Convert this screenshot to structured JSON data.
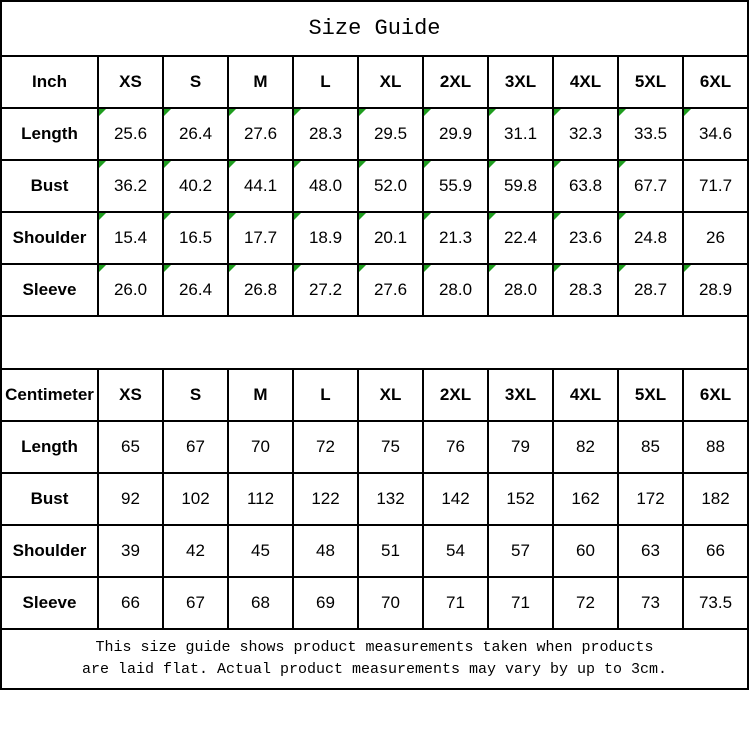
{
  "title": "Size Guide",
  "tables": [
    {
      "id": "inch",
      "header": [
        "Inch",
        "XS",
        "S",
        "M",
        "L",
        "XL",
        "2XL",
        "3XL",
        "4XL",
        "5XL",
        "6XL"
      ],
      "rows": [
        {
          "label": "Length",
          "values": [
            "25.6",
            "26.4",
            "27.6",
            "28.3",
            "29.5",
            "29.9",
            "31.1",
            "32.3",
            "33.5",
            "34.6"
          ],
          "flags": [
            1,
            1,
            1,
            1,
            1,
            1,
            1,
            1,
            1,
            1
          ]
        },
        {
          "label": "Bust",
          "values": [
            "36.2",
            "40.2",
            "44.1",
            "48.0",
            "52.0",
            "55.9",
            "59.8",
            "63.8",
            "67.7",
            "71.7"
          ],
          "flags": [
            1,
            1,
            1,
            1,
            1,
            1,
            1,
            1,
            1,
            0
          ]
        },
        {
          "label": "Shoulder",
          "values": [
            "15.4",
            "16.5",
            "17.7",
            "18.9",
            "20.1",
            "21.3",
            "22.4",
            "23.6",
            "24.8",
            "26"
          ],
          "flags": [
            1,
            1,
            1,
            1,
            1,
            1,
            1,
            1,
            1,
            0
          ]
        },
        {
          "label": "Sleeve",
          "values": [
            "26.0",
            "26.4",
            "26.8",
            "27.2",
            "27.6",
            "28.0",
            "28.0",
            "28.3",
            "28.7",
            "28.9"
          ],
          "flags": [
            1,
            1,
            1,
            1,
            1,
            1,
            1,
            1,
            1,
            1
          ]
        }
      ]
    },
    {
      "id": "centimeter",
      "header": [
        "Centimeter",
        "XS",
        "S",
        "M",
        "L",
        "XL",
        "2XL",
        "3XL",
        "4XL",
        "5XL",
        "6XL"
      ],
      "rows": [
        {
          "label": "Length",
          "values": [
            "65",
            "67",
            "70",
            "72",
            "75",
            "76",
            "79",
            "82",
            "85",
            "88"
          ],
          "flags": [
            0,
            0,
            0,
            0,
            0,
            0,
            0,
            0,
            0,
            0
          ]
        },
        {
          "label": "Bust",
          "values": [
            "92",
            "102",
            "112",
            "122",
            "132",
            "142",
            "152",
            "162",
            "172",
            "182"
          ],
          "flags": [
            0,
            0,
            0,
            0,
            0,
            0,
            0,
            0,
            0,
            0
          ]
        },
        {
          "label": "Shoulder",
          "values": [
            "39",
            "42",
            "45",
            "48",
            "51",
            "54",
            "57",
            "60",
            "63",
            "66"
          ],
          "flags": [
            0,
            0,
            0,
            0,
            0,
            0,
            0,
            0,
            0,
            0
          ]
        },
        {
          "label": "Sleeve",
          "values": [
            "66",
            "67",
            "68",
            "69",
            "70",
            "71",
            "71",
            "72",
            "73",
            "73.5"
          ],
          "flags": [
            0,
            0,
            0,
            0,
            0,
            0,
            0,
            0,
            0,
            0
          ]
        }
      ]
    }
  ],
  "footer": {
    "line1": "This size guide shows product measurements taken when products",
    "line2": "are laid flat. Actual product measurements may vary by up to 3cm."
  },
  "colors": {
    "border": "#000000",
    "text": "#000000",
    "background": "#ffffff",
    "flag_triangle": "#1f9d1f"
  }
}
